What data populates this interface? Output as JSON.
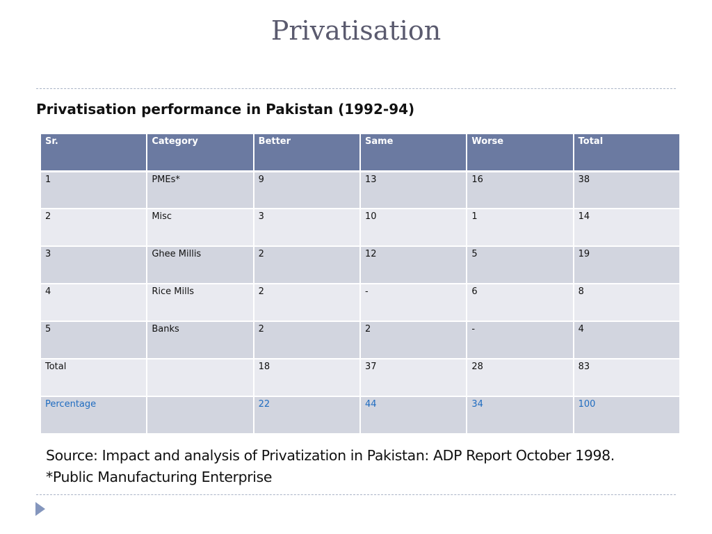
{
  "slide": {
    "title": "Privatisation",
    "subtitle": "Privatisation performance in Pakistan (1992-94)"
  },
  "table": {
    "headers": [
      "Sr.",
      "Category",
      "Better",
      "Same",
      "Worse",
      "Total"
    ],
    "rows": [
      [
        "1",
        "PMEs*",
        "9",
        "13",
        "16",
        "38"
      ],
      [
        "2",
        "Misc",
        "3",
        "10",
        "1",
        "14"
      ],
      [
        "3",
        "Ghee Millis",
        "2",
        "12",
        "5",
        "19"
      ],
      [
        "4",
        "Rice Mills",
        "2",
        "-",
        "6",
        "8"
      ],
      [
        "5",
        "Banks",
        "2",
        "2",
        "-",
        "4"
      ],
      [
        "Total",
        "",
        "18",
        "37",
        "28",
        "83"
      ],
      [
        "Percentage",
        "",
        "22",
        "44",
        "34",
        "100"
      ]
    ]
  },
  "source": {
    "line1": "Source: Impact and analysis of Privatization in Pakistan: ADP Report October 1998.",
    "line2": "*Public Manufacturing Enterprise"
  },
  "colors": {
    "header_bg": "#6b7aa1",
    "row_dark": "#d2d5df",
    "row_light": "#e9eaf0",
    "percentage_text": "#1f6cc0",
    "bullet": "#8496bd"
  },
  "icons": {
    "bullet": "triangle-right-icon"
  }
}
